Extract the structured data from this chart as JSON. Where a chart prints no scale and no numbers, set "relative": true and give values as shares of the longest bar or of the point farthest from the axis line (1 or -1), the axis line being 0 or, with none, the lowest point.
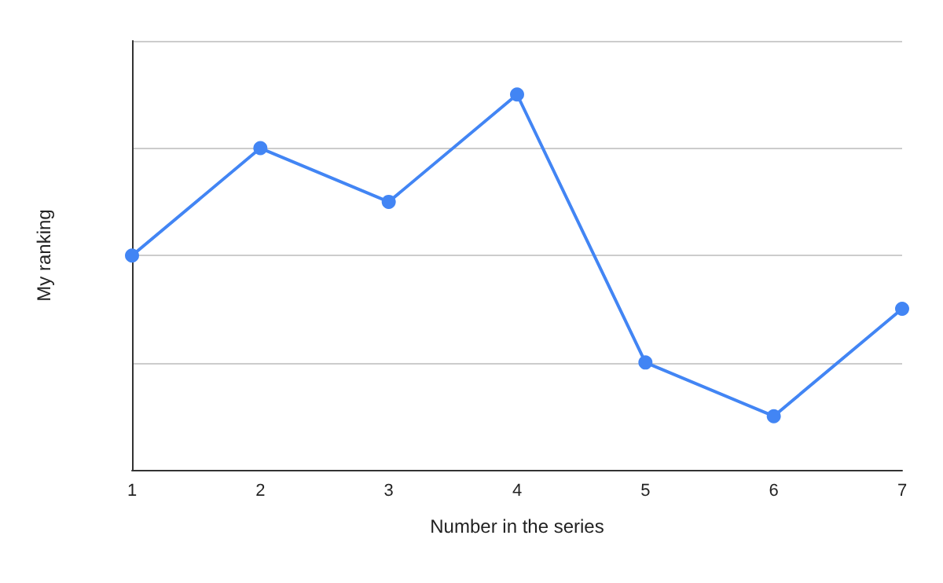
{
  "chart_data": {
    "type": "line",
    "xlabel": "Number in the series",
    "ylabel": "My ranking",
    "categories": [
      "1",
      "2",
      "3",
      "4",
      "5",
      "6",
      "7"
    ],
    "series": [
      {
        "color": "#4285f4",
        "values": [
          0.571,
          0.857,
          0.714,
          1,
          0.286,
          0.143,
          0.429
        ]
      }
    ],
    "relative": true,
    "grid": "y",
    "marker": "circle",
    "line_style": "solid"
  }
}
